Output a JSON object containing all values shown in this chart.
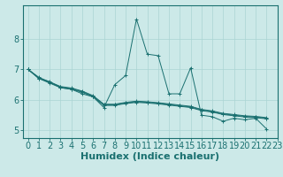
{
  "xlabel": "Humidex (Indice chaleur)",
  "ylabel": "",
  "background_color": "#cce9e8",
  "line_color": "#1a7070",
  "grid_color": "#aad4d3",
  "xlim": [
    -0.5,
    23
  ],
  "ylim": [
    4.75,
    9.1
  ],
  "yticks": [
    5,
    6,
    7,
    8
  ],
  "xticks": [
    0,
    1,
    2,
    3,
    4,
    5,
    6,
    7,
    8,
    9,
    10,
    11,
    12,
    13,
    14,
    15,
    16,
    17,
    18,
    19,
    20,
    21,
    22,
    23
  ],
  "series_spiky": [
    7.0,
    6.7,
    6.6,
    6.4,
    6.35,
    6.2,
    6.1,
    5.75,
    6.5,
    6.8,
    8.65,
    7.5,
    7.45,
    6.2,
    6.2,
    7.05,
    5.5,
    5.45,
    5.3,
    5.4,
    5.35,
    5.4,
    5.05
  ],
  "series_straight": [
    [
      7.0,
      6.7,
      6.55,
      6.4,
      6.35,
      6.25,
      6.1,
      5.82,
      5.82,
      5.88,
      5.92,
      5.9,
      5.87,
      5.83,
      5.79,
      5.75,
      5.65,
      5.6,
      5.52,
      5.48,
      5.44,
      5.42,
      5.38
    ],
    [
      7.0,
      6.72,
      6.57,
      6.42,
      6.37,
      6.27,
      6.12,
      5.84,
      5.84,
      5.9,
      5.94,
      5.92,
      5.89,
      5.85,
      5.81,
      5.77,
      5.67,
      5.62,
      5.54,
      5.5,
      5.46,
      5.44,
      5.4
    ],
    [
      7.0,
      6.74,
      6.59,
      6.44,
      6.39,
      6.29,
      6.14,
      5.86,
      5.86,
      5.92,
      5.96,
      5.94,
      5.91,
      5.87,
      5.83,
      5.79,
      5.69,
      5.64,
      5.56,
      5.52,
      5.48,
      5.46,
      5.42
    ]
  ],
  "xlabel_fontsize": 8,
  "tick_fontsize": 7,
  "figsize": [
    3.2,
    2.0
  ],
  "dpi": 100
}
